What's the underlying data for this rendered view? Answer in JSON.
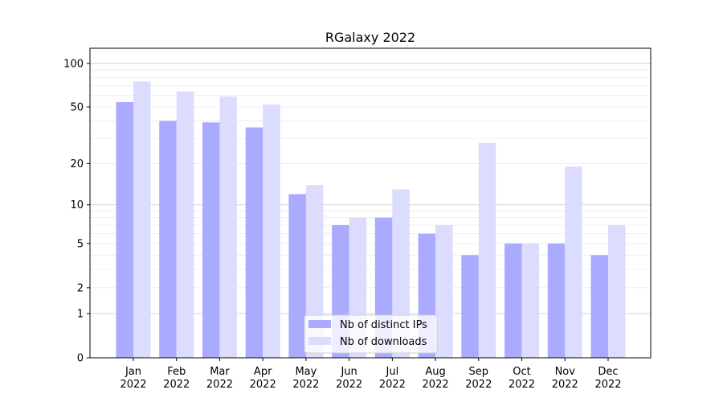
{
  "chart_data": {
    "type": "bar",
    "title": "RGalaxy 2022",
    "xlabel": "",
    "ylabel": "",
    "yscale": "log(y+1)",
    "ylim": [
      0,
      127
    ],
    "yticks": [
      0,
      1,
      2,
      5,
      10,
      20,
      50,
      100
    ],
    "categories": [
      [
        "Jan",
        "2022"
      ],
      [
        "Feb",
        "2022"
      ],
      [
        "Mar",
        "2022"
      ],
      [
        "Apr",
        "2022"
      ],
      [
        "May",
        "2022"
      ],
      [
        "Jun",
        "2022"
      ],
      [
        "Jul",
        "2022"
      ],
      [
        "Aug",
        "2022"
      ],
      [
        "Sep",
        "2022"
      ],
      [
        "Oct",
        "2022"
      ],
      [
        "Nov",
        "2022"
      ],
      [
        "Dec",
        "2022"
      ]
    ],
    "series": [
      {
        "name": "Nb of distinct IPs",
        "color": "#aaaaff",
        "values": [
          54,
          40,
          39,
          36,
          12,
          7,
          8,
          6,
          4,
          5,
          5,
          4
        ]
      },
      {
        "name": "Nb of downloads",
        "color": "#dcdcff",
        "values": [
          75,
          64,
          59,
          52,
          14,
          8,
          13,
          7,
          28,
          5,
          19,
          7
        ]
      }
    ],
    "grid": true,
    "legend_position": "bottom-center"
  }
}
